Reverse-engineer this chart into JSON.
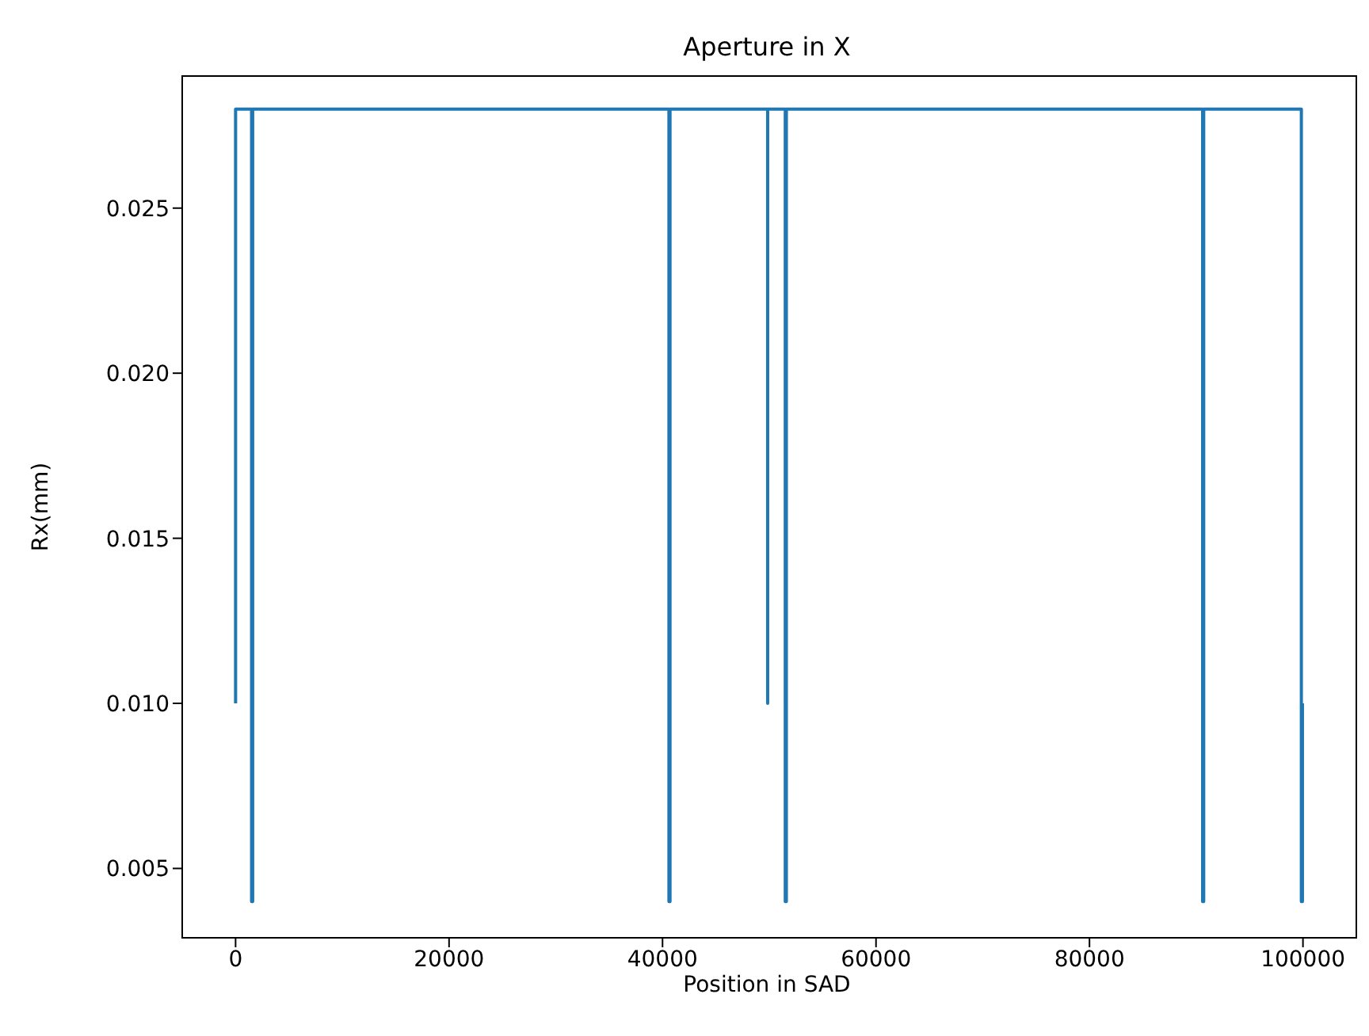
{
  "chart_data": {
    "type": "line",
    "title": "Aperture in X",
    "xlabel": "Position in SAD",
    "ylabel": "Rx(mm)",
    "x": [
      0,
      0,
      1500,
      1500,
      1600,
      1600,
      40600,
      40600,
      40700,
      40700,
      49850,
      49850,
      49850,
      51500,
      51500,
      51600,
      51600,
      90600,
      90600,
      90700,
      90700,
      99850,
      99850,
      99950,
      99950
    ],
    "series": [
      {
        "color": "#1f77b4",
        "values": [
          0.01,
          0.028,
          0.028,
          0.004,
          0.004,
          0.028,
          0.028,
          0.004,
          0.004,
          0.028,
          0.028,
          0.01,
          0.028,
          0.028,
          0.004,
          0.004,
          0.028,
          0.028,
          0.004,
          0.004,
          0.028,
          0.028,
          0.004,
          0.004,
          0.01
        ]
      }
    ],
    "xlim": [
      -5000,
      105000
    ],
    "xticks": [
      0,
      20000,
      40000,
      60000,
      80000,
      100000
    ],
    "ylim": [
      0.0029,
      0.029
    ],
    "yticks": [
      0.005,
      {
        "value": 0.01,
        "label": "0.010"
      },
      0.015,
      {
        "value": 0.02,
        "label": "0.020"
      },
      0.025
    ],
    "grid": false,
    "legend": false,
    "marker": "none",
    "line_style": "solid"
  }
}
